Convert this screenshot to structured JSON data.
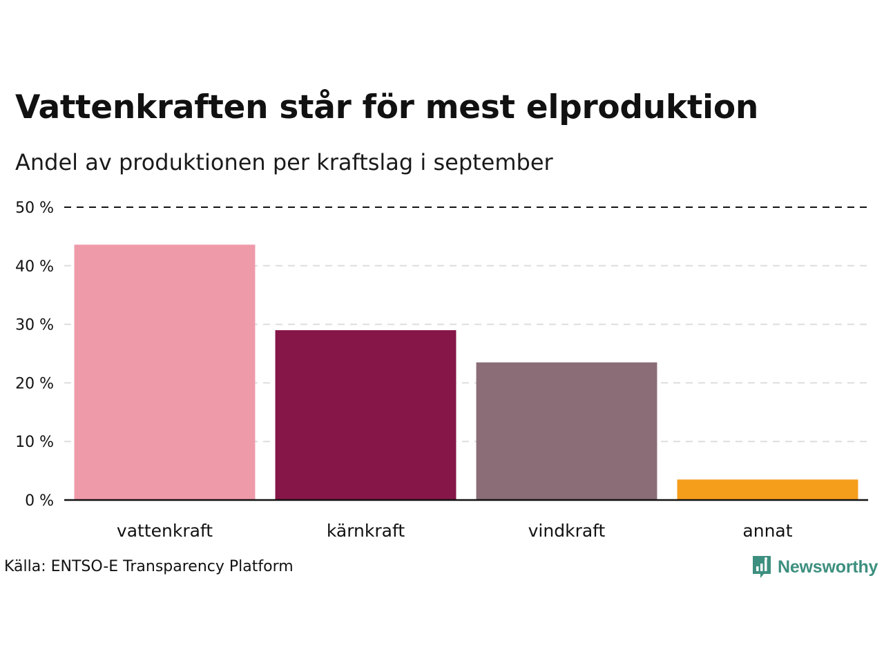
{
  "chart_data": {
    "type": "bar",
    "title": "Vattenkraften står för mest elproduktion",
    "subtitle": "Andel av produktionen per kraftslag i september",
    "categories": [
      "vattenkraft",
      "kärnkraft",
      "vindkraft",
      "annat"
    ],
    "values": [
      43.6,
      29.0,
      23.5,
      3.5
    ],
    "colors": [
      "#ef9aa9",
      "#861648",
      "#8a6d76",
      "#f59e1b"
    ],
    "ylim": [
      0,
      50
    ],
    "yticks": [
      0,
      10,
      20,
      30,
      40,
      50
    ],
    "ytick_labels": [
      "0 %",
      "10 %",
      "20 %",
      "30 %",
      "40 %",
      "50 %"
    ],
    "xlabel": "",
    "ylabel": "",
    "grid": true,
    "legend": "none"
  },
  "source": "Källa: ENTSO-E Transparency Platform",
  "brand": {
    "name": "Newsworthy",
    "icon": "newsworthy-logo-icon",
    "color": "#3d8f7f"
  }
}
